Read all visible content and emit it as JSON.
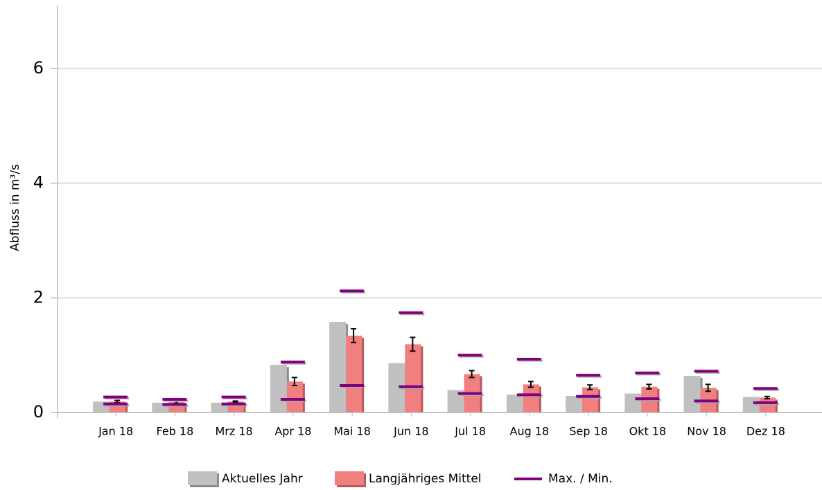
{
  "chart_data": {
    "type": "bar",
    "y_label": "Abfluss in m³/s",
    "categories": [
      "Jan 18",
      "Feb 18",
      "Mrz 18",
      "Apr 18",
      "Mai 18",
      "Jun 18",
      "Jul 18",
      "Aug 18",
      "Sep 18",
      "Okt 18",
      "Nov 18",
      "Dez 18"
    ],
    "series": [
      {
        "name": "Aktuelles Jahr",
        "color": "#c0c0c0",
        "values": [
          0.19,
          0.17,
          0.17,
          0.83,
          1.58,
          0.86,
          0.39,
          0.31,
          0.29,
          0.33,
          0.64,
          0.27
        ]
      },
      {
        "name": "Langjähriges Mittel",
        "color": "#f08080",
        "values": [
          0.19,
          0.18,
          0.19,
          0.54,
          1.34,
          1.19,
          0.67,
          0.49,
          0.44,
          0.45,
          0.43,
          0.26
        ],
        "errors": [
          0.02,
          0.02,
          0.01,
          0.07,
          0.12,
          0.12,
          0.06,
          0.05,
          0.04,
          0.04,
          0.06,
          0.02
        ]
      },
      {
        "name": "Max. / Min.",
        "color": "#800080",
        "max": [
          0.27,
          0.23,
          0.27,
          0.88,
          2.12,
          1.74,
          1.0,
          0.93,
          0.65,
          0.69,
          0.72,
          0.42
        ],
        "min": [
          0.15,
          0.14,
          0.15,
          0.23,
          0.47,
          0.45,
          0.33,
          0.31,
          0.28,
          0.24,
          0.2,
          0.17
        ]
      }
    ],
    "ylim": [
      0,
      7
    ],
    "yticks": [
      0,
      2,
      4,
      6
    ],
    "grid": true,
    "legend": "bottom"
  }
}
